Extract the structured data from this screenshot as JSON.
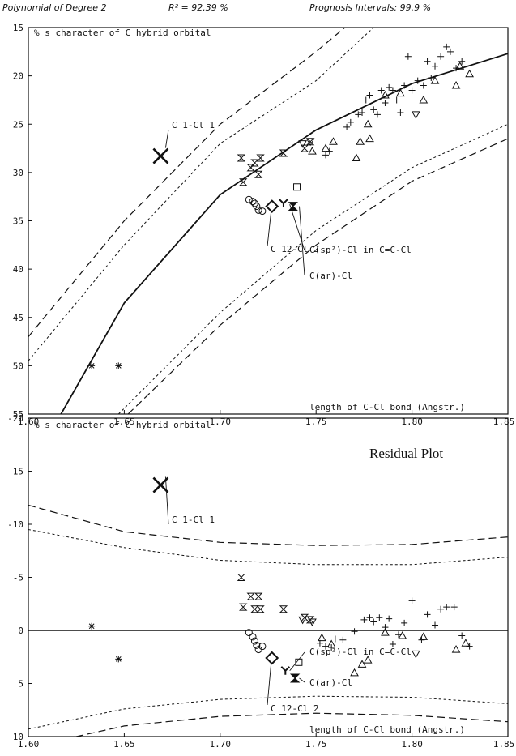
{
  "header": {
    "model": "Polynomial of Degree 2",
    "r2": "R² = 92.39 %",
    "intervals": "Prognosis Intervals: 99.9 %"
  },
  "chart_data": [
    {
      "type": "scatter",
      "ylabel": "% s character of C hybrid orbital",
      "xlabel": "length of C-Cl bond (Angstr.)",
      "xlim": [
        1.6,
        1.85
      ],
      "ylim": [
        15,
        55
      ],
      "y_inverted": true,
      "x_ticks": [
        "1.60",
        "1.65",
        "1.70",
        "1.75",
        "1.80",
        "1.85"
      ],
      "y_ticks": [
        "15",
        "20",
        "25",
        "30",
        "35",
        "40",
        "45",
        "50",
        "55"
      ],
      "fit_curve": {
        "x": [
          1.617,
          1.65,
          1.7,
          1.75,
          1.8,
          1.85
        ],
        "y": [
          55.0,
          43.5,
          32.3,
          25.6,
          20.8,
          17.7
        ]
      },
      "inner_interval_upper": {
        "x": [
          1.6,
          1.65,
          1.7,
          1.75,
          1.78
        ],
        "y": [
          49.5,
          37.5,
          27.0,
          20.5,
          15.0
        ]
      },
      "outer_interval_upper": {
        "x": [
          1.6,
          1.65,
          1.7,
          1.75,
          1.765
        ],
        "y": [
          47.0,
          35.0,
          25.0,
          17.5,
          15.0
        ]
      },
      "inner_interval_lower": {
        "x": [
          1.647,
          1.7,
          1.75,
          1.8,
          1.85
        ],
        "y": [
          55.0,
          44.5,
          36.0,
          29.5,
          25.0
        ]
      },
      "outer_interval_lower": {
        "x": [
          1.652,
          1.7,
          1.75,
          1.8,
          1.85
        ],
        "y": [
          55.0,
          45.8,
          37.5,
          30.9,
          26.5
        ]
      },
      "series": [
        {
          "marker": "asterisk",
          "x": [
            1.633,
            1.647
          ],
          "y": [
            50.0,
            50.0
          ]
        },
        {
          "marker": "hourglass",
          "x": [
            1.711,
            1.712,
            1.716,
            1.718,
            1.72,
            1.721,
            1.733,
            1.744,
            1.747
          ],
          "y": [
            28.5,
            31.0,
            29.5,
            29.0,
            30.2,
            28.5,
            28.0,
            27.5,
            26.8
          ]
        },
        {
          "marker": "circle",
          "x": [
            1.715,
            1.717,
            1.718,
            1.719,
            1.72,
            1.722
          ],
          "y": [
            32.8,
            33.0,
            33.2,
            33.5,
            33.9,
            34.0
          ]
        },
        {
          "marker": "triangle-up",
          "x": [
            1.748,
            1.755,
            1.759,
            1.771,
            1.773,
            1.777,
            1.778,
            1.786,
            1.794,
            1.806,
            1.812,
            1.823,
            1.825,
            1.83
          ],
          "y": [
            27.8,
            27.5,
            26.8,
            28.5,
            26.8,
            25.0,
            26.5,
            22.0,
            21.8,
            22.5,
            20.5,
            21.0,
            19.0,
            19.8
          ]
        },
        {
          "marker": "triangle-down",
          "x": [
            1.743,
            1.747,
            1.802
          ],
          "y": [
            27.0,
            26.8,
            24.0
          ]
        },
        {
          "marker": "plus",
          "x": [
            1.755,
            1.757,
            1.766,
            1.768,
            1.772,
            1.774,
            1.776,
            1.778,
            1.78,
            1.782,
            1.784,
            1.786,
            1.788,
            1.79,
            1.792,
            1.794,
            1.796,
            1.798,
            1.8,
            1.803,
            1.806,
            1.808,
            1.81,
            1.812,
            1.815,
            1.818,
            1.82,
            1.823,
            1.826
          ],
          "y": [
            28.2,
            27.8,
            25.3,
            24.8,
            24.0,
            23.8,
            22.5,
            22.0,
            23.5,
            24.0,
            21.5,
            22.8,
            21.2,
            21.5,
            22.5,
            23.8,
            21.0,
            18.0,
            21.5,
            20.5,
            21.0,
            18.5,
            20.2,
            19.0,
            18.0,
            17.0,
            17.5,
            19.2,
            18.5
          ]
        },
        {
          "marker": "square",
          "x": [
            1.74
          ],
          "y": [
            31.5
          ]
        },
        {
          "marker": "diamond",
          "x": [
            1.727
          ],
          "y": [
            33.5
          ]
        },
        {
          "marker": "bowtie",
          "x": [
            1.738
          ],
          "y": [
            33.5
          ]
        },
        {
          "marker": "y",
          "x": [
            1.733
          ],
          "y": [
            33.2
          ]
        },
        {
          "marker": "x-large",
          "x": [
            1.669
          ],
          "y": [
            28.3
          ]
        }
      ],
      "annotations": [
        {
          "text": "C 1-Cl 1",
          "x": 1.669,
          "y": 28.3
        },
        {
          "text": "C 12-Cl 2",
          "x": 1.727,
          "y": 33.5
        },
        {
          "text": "C(sp²)-Cl in C=C-Cl",
          "x": 1.735,
          "y": 33.3
        },
        {
          "text": "C(ar)-Cl",
          "x": 1.74,
          "y": 33.5
        }
      ]
    },
    {
      "type": "scatter",
      "title": "Residual Plot",
      "ylabel": "% s character of C hybrid orbital",
      "xlabel": "length of C-Cl bond (Angstr.)",
      "xlim": [
        1.6,
        1.85
      ],
      "ylim": [
        -20,
        10
      ],
      "y_inverted": true,
      "x_ticks": [
        "1.60",
        "1.65",
        "1.70",
        "1.75",
        "1.80",
        "1.85"
      ],
      "y_ticks": [
        "-20",
        "-15",
        "-10",
        "-5",
        "0",
        "5",
        "10"
      ],
      "zero_line": 0,
      "outer_interval_upper": {
        "x": [
          1.6,
          1.65,
          1.7,
          1.75,
          1.8,
          1.85
        ],
        "y": [
          -11.8,
          -9.3,
          -8.3,
          -8.0,
          -8.1,
          -8.8
        ]
      },
      "inner_interval_upper": {
        "x": [
          1.6,
          1.65,
          1.7,
          1.75,
          1.8,
          1.85
        ],
        "y": [
          -9.5,
          -7.8,
          -6.6,
          -6.2,
          -6.2,
          -6.9
        ]
      },
      "inner_interval_lower": {
        "x": [
          1.6,
          1.65,
          1.7,
          1.75,
          1.8,
          1.85
        ],
        "y": [
          9.3,
          7.4,
          6.5,
          6.2,
          6.3,
          6.9
        ]
      },
      "outer_interval_lower": {
        "x": [
          1.625,
          1.65,
          1.7,
          1.75,
          1.8,
          1.85
        ],
        "y": [
          10.0,
          9.0,
          8.1,
          7.8,
          8.0,
          8.6
        ]
      },
      "series": [
        {
          "marker": "asterisk",
          "x": [
            1.633,
            1.647
          ],
          "y": [
            -0.4,
            2.7
          ]
        },
        {
          "marker": "hourglass",
          "x": [
            1.711,
            1.712,
            1.716,
            1.718,
            1.72,
            1.721,
            1.733,
            1.744,
            1.747
          ],
          "y": [
            -5.0,
            -2.2,
            -3.2,
            -2.0,
            -3.2,
            -2.0,
            -2.0,
            -1.2,
            -1.0
          ]
        },
        {
          "marker": "circle",
          "x": [
            1.715,
            1.717,
            1.718,
            1.719,
            1.72,
            1.722
          ],
          "y": [
            0.2,
            0.6,
            1.0,
            1.4,
            1.8,
            1.5
          ]
        },
        {
          "marker": "triangle-up",
          "x": [
            1.753,
            1.758,
            1.77,
            1.774,
            1.777,
            1.786,
            1.795,
            1.806,
            1.823,
            1.828
          ],
          "y": [
            0.7,
            1.3,
            4.0,
            3.2,
            2.8,
            0.2,
            0.5,
            0.6,
            1.8,
            1.2
          ]
        },
        {
          "marker": "triangle-down",
          "x": [
            1.743,
            1.748,
            1.802
          ],
          "y": [
            -1.0,
            -0.8,
            2.2
          ]
        },
        {
          "marker": "plus",
          "x": [
            1.752,
            1.755,
            1.758,
            1.76,
            1.764,
            1.77,
            1.775,
            1.778,
            1.78,
            1.783,
            1.786,
            1.788,
            1.79,
            1.793,
            1.796,
            1.8,
            1.805,
            1.808,
            1.812,
            1.815,
            1.818,
            1.822,
            1.826,
            1.83
          ],
          "y": [
            1.2,
            1.5,
            1.6,
            0.8,
            0.9,
            0.1,
            -1.0,
            -1.2,
            -0.8,
            -1.2,
            -0.3,
            -1.1,
            1.3,
            0.4,
            -0.7,
            -2.8,
            0.9,
            -1.5,
            -0.5,
            -2.0,
            -2.2,
            -2.2,
            0.5,
            1.5
          ]
        },
        {
          "marker": "square",
          "x": [
            1.741
          ],
          "y": [
            3.0
          ]
        },
        {
          "marker": "diamond",
          "x": [
            1.727
          ],
          "y": [
            2.6
          ]
        },
        {
          "marker": "bowtie",
          "x": [
            1.739
          ],
          "y": [
            4.5
          ]
        },
        {
          "marker": "y",
          "x": [
            1.734
          ],
          "y": [
            3.8
          ]
        },
        {
          "marker": "x-large",
          "x": [
            1.669
          ],
          "y": [
            -13.7
          ]
        }
      ],
      "annotations": [
        {
          "text": "C 1-Cl 1",
          "x": 1.669,
          "y": -13.7
        },
        {
          "text": "C 12-Cl 2",
          "x": 1.727,
          "y": 2.6
        },
        {
          "text": "C(sp²)-Cl in C=C-Cl",
          "x": 1.735,
          "y": 3.8
        },
        {
          "text": "C(ar)-Cl",
          "x": 1.74,
          "y": 4.5
        }
      ]
    }
  ]
}
